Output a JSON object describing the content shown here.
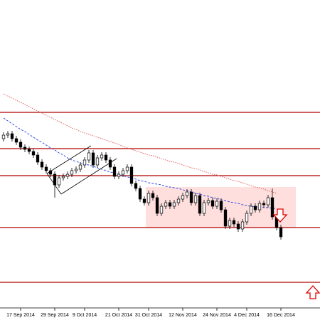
{
  "chart_data": {
    "type": "candlestick",
    "categories": [
      null,
      null,
      null,
      null,
      "17 Sep 2014",
      null,
      null,
      null,
      null,
      null,
      null,
      null,
      "29 Sep 2014",
      null,
      null,
      null,
      null,
      null,
      null,
      "9 Oct 2014",
      null,
      null,
      null,
      null,
      null,
      null,
      null,
      "21 Oct 2014",
      null,
      null,
      null,
      null,
      null,
      null,
      "31 Oct 2014",
      null,
      null,
      null,
      null,
      null,
      null,
      null,
      "12 Nov 2014",
      null,
      null,
      null,
      null,
      null,
      null,
      null,
      "24 Nov 2014",
      null,
      null,
      null,
      null,
      null,
      null,
      "4 Dec 2014",
      null,
      null,
      null,
      null,
      null,
      null,
      null,
      "16 Dec 2014"
    ],
    "open": [
      255,
      260,
      262,
      255,
      250,
      243,
      240,
      237,
      232,
      222,
      215,
      210,
      205,
      190,
      200,
      202,
      205,
      210,
      212,
      218,
      225,
      235,
      218,
      228,
      232,
      225,
      215,
      202,
      205,
      210,
      215,
      192,
      185,
      170,
      165,
      178,
      172,
      150,
      160,
      165,
      160,
      165,
      170,
      175,
      180,
      165,
      175,
      150,
      165,
      168,
      160,
      167,
      155,
      132,
      140,
      135,
      128,
      138,
      150,
      160,
      155,
      164,
      162,
      172,
      145,
      130
    ],
    "high": [
      264,
      266,
      266,
      259,
      254,
      247,
      244,
      241,
      236,
      226,
      219,
      214,
      209,
      204,
      206,
      209,
      214,
      216,
      222,
      229,
      239,
      239,
      232,
      236,
      236,
      229,
      219,
      209,
      214,
      219,
      219,
      196,
      189,
      174,
      182,
      182,
      176,
      164,
      169,
      169,
      169,
      174,
      179,
      184,
      184,
      179,
      179,
      169,
      172,
      172,
      171,
      171,
      159,
      144,
      144,
      139,
      142,
      154,
      164,
      164,
      168,
      168,
      176,
      185,
      149,
      134
    ],
    "low": [
      251,
      256,
      251,
      246,
      239,
      236,
      233,
      228,
      218,
      211,
      206,
      201,
      172,
      186,
      196,
      198,
      201,
      206,
      208,
      214,
      221,
      214,
      214,
      224,
      221,
      211,
      198,
      198,
      201,
      206,
      188,
      181,
      166,
      161,
      161,
      168,
      146,
      146,
      156,
      156,
      156,
      161,
      166,
      171,
      161,
      161,
      146,
      146,
      161,
      156,
      156,
      151,
      128,
      128,
      131,
      124,
      124,
      134,
      146,
      151,
      151,
      158,
      158,
      141,
      126,
      113
    ],
    "close": [
      260,
      262,
      255,
      250,
      243,
      240,
      237,
      232,
      222,
      215,
      210,
      205,
      190,
      200,
      202,
      205,
      210,
      212,
      218,
      225,
      235,
      218,
      228,
      232,
      225,
      215,
      202,
      205,
      210,
      215,
      192,
      185,
      170,
      165,
      178,
      172,
      150,
      160,
      165,
      160,
      165,
      170,
      175,
      180,
      165,
      175,
      150,
      165,
      168,
      160,
      167,
      155,
      132,
      140,
      135,
      128,
      138,
      150,
      160,
      155,
      164,
      162,
      172,
      145,
      130,
      117
    ],
    "up_color": "#ffffff",
    "down_color": "#000000",
    "ylim": [
      0,
      450
    ],
    "series": [
      {
        "color": "#e05050",
        "style": "dotted",
        "values": [
          318,
          315,
          312,
          309,
          306,
          303,
          300,
          297,
          294,
          291,
          288,
          285,
          282,
          279,
          276,
          273,
          270,
          268,
          265,
          263,
          261,
          259,
          257,
          255,
          253,
          251,
          249,
          247,
          244,
          242,
          240,
          238,
          236,
          234,
          232,
          231,
          229,
          227,
          225,
          223,
          222,
          220,
          218,
          216,
          214,
          213,
          211,
          209,
          207,
          205,
          204,
          202,
          200,
          198,
          196,
          195,
          193,
          191,
          189,
          187,
          186,
          184,
          182,
          180,
          178,
          null
        ]
      },
      {
        "color": "#2040e0",
        "style": "dashed",
        "values": [
          284,
          280,
          276,
          272,
          268,
          265,
          261,
          257,
          253,
          250,
          246,
          242,
          239,
          235,
          232,
          228,
          225,
          223,
          221,
          219,
          218,
          216,
          214,
          212,
          210,
          208,
          207,
          205,
          203,
          201,
          200,
          198,
          196,
          195,
          193,
          192,
          191,
          190,
          188,
          187,
          186,
          185,
          183,
          182,
          180,
          178,
          177,
          175,
          174,
          172,
          171,
          169,
          168,
          166,
          165,
          164,
          162,
          161,
          160,
          159,
          159,
          158,
          158,
          157,
          157,
          null
        ]
      }
    ],
    "levels": [
      292,
      241,
      203,
      130,
      53
    ],
    "level_color": "#b00000",
    "zone": {
      "low": 130,
      "high": 187,
      "color": "#ffdede"
    }
  }
}
